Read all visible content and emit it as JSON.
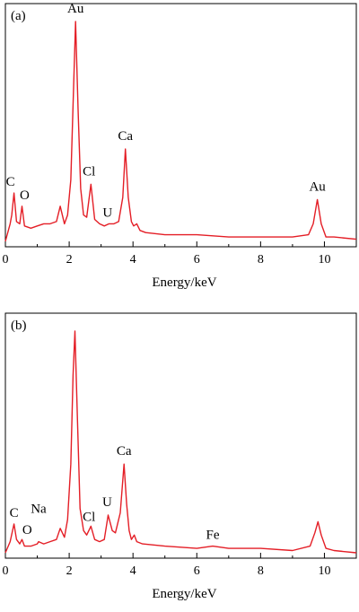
{
  "colors": {
    "spectrum": "#e41e26",
    "axes": "#000000"
  },
  "chart_data": [
    {
      "type": "line",
      "panel_label": "(a)",
      "xlabel": "Energy/keV",
      "ylabel": "",
      "xlim": [
        0,
        11
      ],
      "ylim": [
        0,
        100
      ],
      "xticks": [
        0,
        2,
        4,
        6,
        8,
        10
      ],
      "grid": false,
      "series": [
        {
          "x": [
            0,
            0.15,
            0.2,
            0.27,
            0.35,
            0.45,
            0.52,
            0.6,
            0.8,
            1.0,
            1.2,
            1.4,
            1.6,
            1.72,
            1.85,
            1.95,
            2.05,
            2.12,
            2.2,
            2.28,
            2.36,
            2.45,
            2.55,
            2.68,
            2.8,
            2.95,
            3.1,
            3.25,
            3.4,
            3.55,
            3.68,
            3.76,
            3.85,
            3.95,
            4.02,
            4.12,
            4.22,
            4.4,
            5.0,
            6.0,
            7.0,
            8.0,
            9.0,
            9.5,
            9.65,
            9.78,
            9.9,
            10.05,
            10.3,
            11.0
          ],
          "y": [
            0,
            8,
            12,
            22,
            9,
            8,
            16,
            7,
            6,
            7,
            8,
            8,
            9,
            16,
            8,
            12,
            28,
            62,
            100,
            60,
            24,
            12,
            11,
            26,
            10,
            8,
            7,
            8,
            8,
            9,
            20,
            42,
            20,
            9,
            7,
            8,
            5,
            4,
            3,
            3,
            2,
            2,
            2,
            3,
            8,
            19,
            8,
            2,
            2,
            1
          ]
        }
      ],
      "annotations": [
        {
          "text": "Au",
          "x": 2.2,
          "y": 100
        },
        {
          "text": "C",
          "x": 0.27,
          "y": 22
        },
        {
          "text": "O",
          "x": 0.52,
          "y": 16
        },
        {
          "text": "Cl",
          "x": 2.68,
          "y": 26
        },
        {
          "text": "U",
          "x": 3.2,
          "y": 8
        },
        {
          "text": "Ca",
          "x": 3.76,
          "y": 42
        },
        {
          "text": "Au",
          "x": 9.78,
          "y": 19
        }
      ]
    },
    {
      "type": "line",
      "panel_label": "(b)",
      "xlabel": "Energy/keV",
      "ylabel": "",
      "xlim": [
        0,
        11
      ],
      "ylim": [
        0,
        100
      ],
      "xticks": [
        0,
        2,
        4,
        6,
        8,
        10
      ],
      "grid": false,
      "series": [
        {
          "x": [
            0,
            0.15,
            0.27,
            0.35,
            0.45,
            0.52,
            0.6,
            0.8,
            1.0,
            1.04,
            1.2,
            1.4,
            1.6,
            1.72,
            1.85,
            1.95,
            2.05,
            2.12,
            2.18,
            2.26,
            2.34,
            2.45,
            2.55,
            2.68,
            2.8,
            2.95,
            3.1,
            3.22,
            3.35,
            3.45,
            3.6,
            3.72,
            3.8,
            3.88,
            3.95,
            4.04,
            4.12,
            4.3,
            5.0,
            6.0,
            6.5,
            7.0,
            8.0,
            9.0,
            9.55,
            9.7,
            9.8,
            9.9,
            10.05,
            10.3,
            11.0
          ],
          "y": [
            0,
            5,
            13,
            6,
            4,
            6,
            3,
            3,
            4,
            5,
            4,
            5,
            6,
            11,
            7,
            15,
            40,
            80,
            100,
            60,
            20,
            10,
            8,
            12,
            6,
            5,
            6,
            17,
            10,
            9,
            18,
            40,
            22,
            10,
            6,
            8,
            5,
            4,
            3,
            2,
            3,
            2,
            2,
            1,
            3,
            9,
            14,
            8,
            2,
            1,
            0
          ]
        }
      ],
      "annotations": [
        {
          "text": "C",
          "x": 0.27,
          "y": 13
        },
        {
          "text": "O",
          "x": 0.6,
          "y": 6
        },
        {
          "text": "Na",
          "x": 1.04,
          "y": 5
        },
        {
          "text": "Cl",
          "x": 2.68,
          "y": 12
        },
        {
          "text": "U",
          "x": 3.22,
          "y": 17
        },
        {
          "text": "Ca",
          "x": 3.72,
          "y": 40
        },
        {
          "text": "Fe",
          "x": 6.5,
          "y": 3
        }
      ]
    }
  ]
}
